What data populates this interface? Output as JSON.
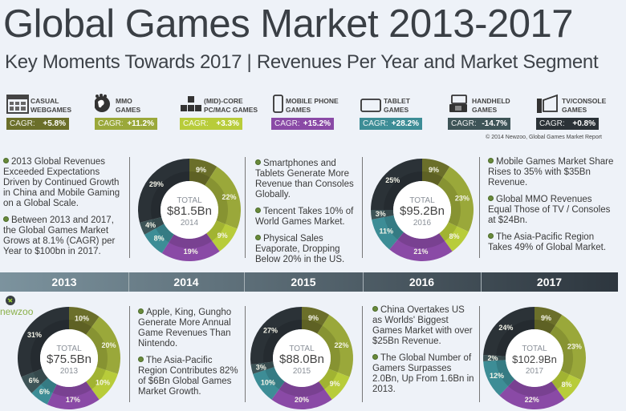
{
  "header": {
    "title": "Global Games Market 2013-2017",
    "subtitle": "Key Moments Towards 2017 | Revenues Per Year and Market Segment"
  },
  "segments": [
    {
      "icon": "webgames-icon",
      "line1": "CASUAL",
      "line2": "WEBGAMES",
      "cagr_label": "CAGR:",
      "cagr": "+5.8%",
      "color": "#6b6f2a"
    },
    {
      "icon": "globe-crowd-icon",
      "line1": "MMO",
      "line2": "GAMES",
      "cagr_label": "CAGR:",
      "cagr": "+11.2%",
      "color": "#9aa83a"
    },
    {
      "icon": "keyboard-keys-icon",
      "line1": "(MID)-CORE",
      "line2": "PC/MAC GAMES",
      "cagr_label": "CAGR:",
      "cagr": "+3.3%",
      "color": "#b8cc3a"
    },
    {
      "icon": "mobile-phone-icon",
      "line1": "MOBILE PHONE",
      "line2": "GAMES",
      "cagr_label": "CAGR:",
      "cagr": "+15.2%",
      "color": "#8a4aa6"
    },
    {
      "icon": "tablet-icon",
      "line1": "TABLET",
      "line2": "GAMES",
      "cagr_label": "CAGR:",
      "cagr": "+28.2%",
      "color": "#3d8d96"
    },
    {
      "icon": "handheld-icon",
      "line1": "HANDHELD",
      "line2": "GAMES",
      "cagr_label": "CAGR:",
      "cagr": "-14.7%",
      "color": "#3e5457"
    },
    {
      "icon": "tv-console-icon",
      "line1": "TV/CONSOLE",
      "line2": "GAMES",
      "cagr_label": "CAGR:",
      "cagr": "+0.8%",
      "color": "#2b3237"
    }
  ],
  "copyright": "© 2014 Newzoo, Global Games Market Report",
  "notes": {
    "top_left": [
      "2013 Global Revenues Exceeded Expectations Driven by Continued Growth in China and Mobile Gaming on a Global Scale.",
      "Between 2013 and 2017, the Global Games Market Grows at 8.1% (CAGR) per Year to $100bn in 2017."
    ],
    "top_mid": [
      "Smartphones and Tablets Generate More Revenue than Consoles Globally.",
      "Tencent Takes 10% of World Games Market.",
      "Physical Sales Evaporate, Dropping Below 20% in the US."
    ],
    "top_right": [
      "Mobile Games Market Share Rises to 35% with $35Bn Revenue.",
      "Global MMO Revenues Equal Those of TV / Consoles at $24Bn.",
      "The Asia-Pacific Region Takes 49% of Global Market."
    ],
    "bottom_left": [
      "Apple, King, Gungho Generate More Annual Game Revenues Than Nintendo.",
      "The Asia-Pacific Region Contributes 82% of $6Bn Global Games Market Growth."
    ],
    "bottom_right": [
      "China Overtakes US as Worlds' Biggest Games Market with over $25Bn Revenue.",
      "The Global Number of Gamers Surpasses 2.0Bn, Up From 1.6Bn in 2013."
    ]
  },
  "timeline": [
    "2013",
    "2014",
    "2015",
    "2016",
    "2017"
  ],
  "logo_text": "newzoo",
  "chart_data": [
    {
      "type": "pie",
      "title": "2013",
      "total_label": "TOTAL",
      "total": "$75.5Bn",
      "year": "2013",
      "categories": [
        "Casual Webgames",
        "MMO Games",
        "(Mid)-Core PC/Mac Games",
        "Mobile Phone Games",
        "Tablet Games",
        "Handheld Games",
        "TV/Console Games"
      ],
      "values": [
        10,
        20,
        10,
        17,
        6,
        6,
        31
      ]
    },
    {
      "type": "pie",
      "title": "2014",
      "total_label": "TOTAL",
      "total": "$81.5Bn",
      "year": "2014",
      "categories": [
        "Casual Webgames",
        "MMO Games",
        "(Mid)-Core PC/Mac Games",
        "Mobile Phone Games",
        "Tablet Games",
        "Handheld Games",
        "TV/Console Games"
      ],
      "values": [
        9,
        22,
        9,
        19,
        8,
        4,
        29
      ]
    },
    {
      "type": "pie",
      "title": "2015",
      "total_label": "TOTAL",
      "total": "$88.0Bn",
      "year": "2015",
      "categories": [
        "Casual Webgames",
        "MMO Games",
        "(Mid)-Core PC/Mac Games",
        "Mobile Phone Games",
        "Tablet Games",
        "Handheld Games",
        "TV/Console Games"
      ],
      "values": [
        9,
        22,
        9,
        20,
        10,
        3,
        27
      ]
    },
    {
      "type": "pie",
      "title": "2016",
      "total_label": "TOTAL",
      "total": "$95.2Bn",
      "year": "2016",
      "categories": [
        "Casual Webgames",
        "MMO Games",
        "(Mid)-Core PC/Mac Games",
        "Mobile Phone Games",
        "Tablet Games",
        "Handheld Games",
        "TV/Console Games"
      ],
      "values": [
        9,
        23,
        8,
        21,
        11,
        3,
        25
      ]
    },
    {
      "type": "pie",
      "title": "2017",
      "total_label": "TOTAL",
      "total": "$102.9Bn",
      "year": "2017",
      "categories": [
        "Casual Webgames",
        "MMO Games",
        "(Mid)-Core PC/Mac Games",
        "Mobile Phone Games",
        "Tablet Games",
        "Handheld Games",
        "TV/Console Games"
      ],
      "values": [
        9,
        23,
        8,
        22,
        12,
        2,
        24
      ]
    }
  ]
}
